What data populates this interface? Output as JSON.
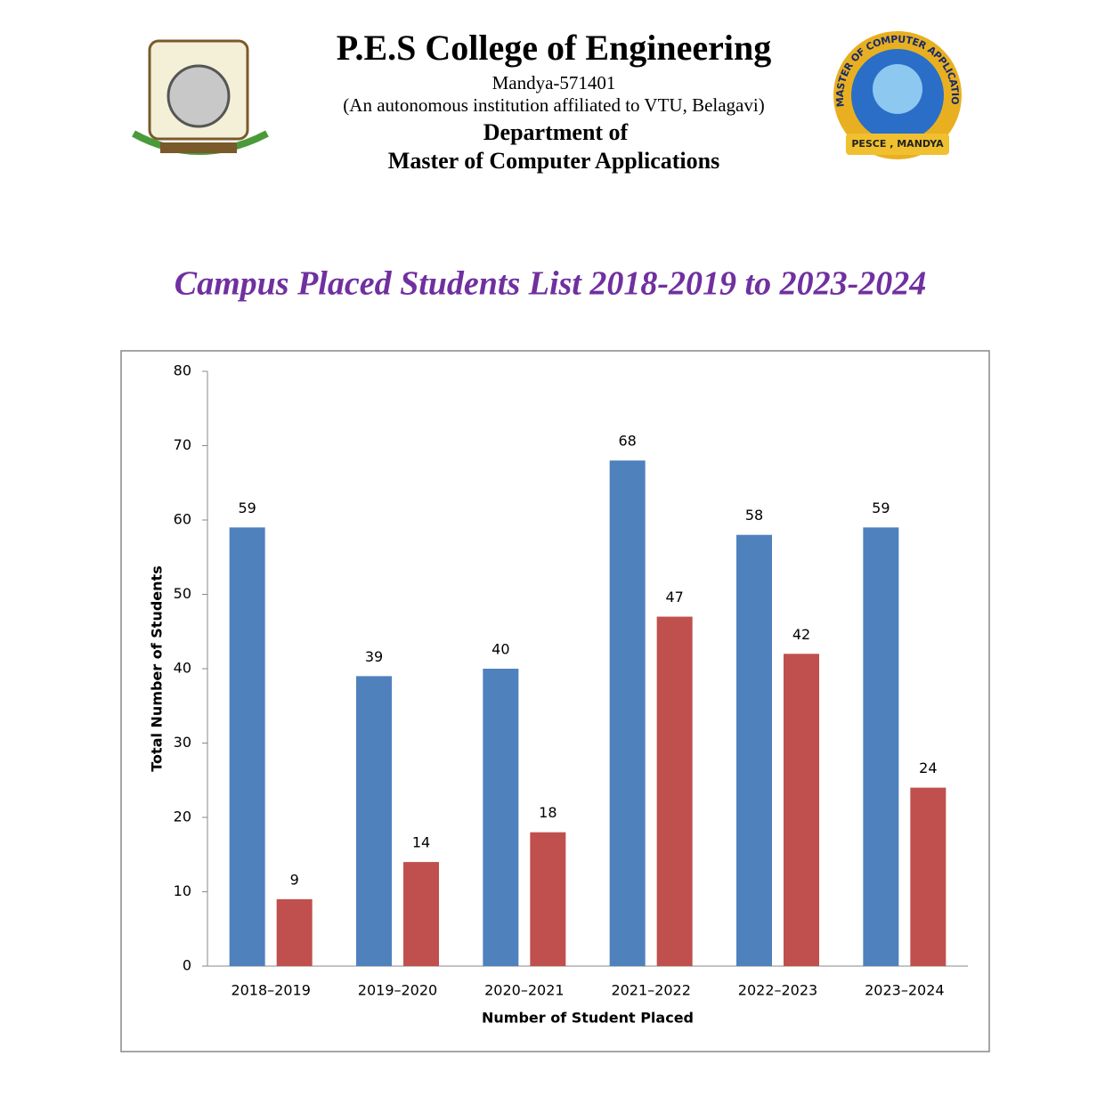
{
  "header": {
    "title": "P.E.S College of Engineering",
    "address": "Mandya-571401",
    "affiliation": "(An autonomous institution affiliated to VTU, Belagavi)",
    "department": "Department of",
    "program": "Master of Computer Applications"
  },
  "logo_right": {
    "ring_text": "MASTER OF COMPUTER APPLICATIONS",
    "banner": "PESCE , MANDYA"
  },
  "page_title": "Campus Placed Students List 2018-2019 to 2023-2024",
  "chart_data": {
    "type": "bar",
    "categories": [
      "2018–2019",
      "2019–2020",
      "2020–2021",
      "2021–2022",
      "2022–2023",
      "2023–2024"
    ],
    "series": [
      {
        "color": "#4f81bd",
        "values": [
          59,
          39,
          40,
          68,
          58,
          59
        ]
      },
      {
        "color": "#c0504d",
        "values": [
          9,
          14,
          18,
          47,
          42,
          24
        ]
      }
    ],
    "ylim": [
      0,
      80
    ],
    "yticks": [
      0,
      10,
      20,
      30,
      40,
      50,
      60,
      70,
      80
    ],
    "y_label": "Total Number of Students",
    "x_label": "Number of Student Placed"
  }
}
